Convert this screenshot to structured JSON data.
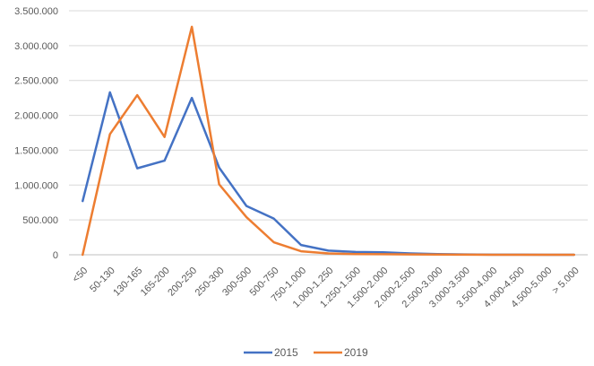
{
  "chart_data": {
    "type": "line",
    "categories": [
      "<50",
      "50-130",
      "130-165",
      "165-200",
      "200-250",
      "250-300",
      "300-500",
      "500-750",
      "750-1.000",
      "1.000-1.250",
      "1.250-1.500",
      "1.500-2.000",
      "2.000-2.500",
      "2.500-3.000",
      "3.000-3.500",
      "3.500-4.000",
      "4.000-4.500",
      "4.500-5.000",
      "> 5.000"
    ],
    "series": [
      {
        "name": "2015",
        "color": "#4472C4",
        "values": [
          770000,
          2330000,
          1240000,
          1350000,
          2250000,
          1250000,
          700000,
          520000,
          140000,
          60000,
          40000,
          35000,
          20000,
          10000,
          5000,
          2000,
          1000,
          500,
          300
        ]
      },
      {
        "name": "2019",
        "color": "#ED7D31",
        "values": [
          0,
          1730000,
          2290000,
          1690000,
          3270000,
          1010000,
          540000,
          180000,
          50000,
          20000,
          10000,
          8000,
          5000,
          3000,
          1500,
          800,
          500,
          300,
          200
        ]
      }
    ],
    "yticks": [
      "0",
      "500.000",
      "1.000.000",
      "1.500.000",
      "2.000.000",
      "2.500.000",
      "3.000.000",
      "3.500.000"
    ],
    "ylim": [
      0,
      3500000
    ],
    "grid": true,
    "legend_position": "bottom"
  }
}
